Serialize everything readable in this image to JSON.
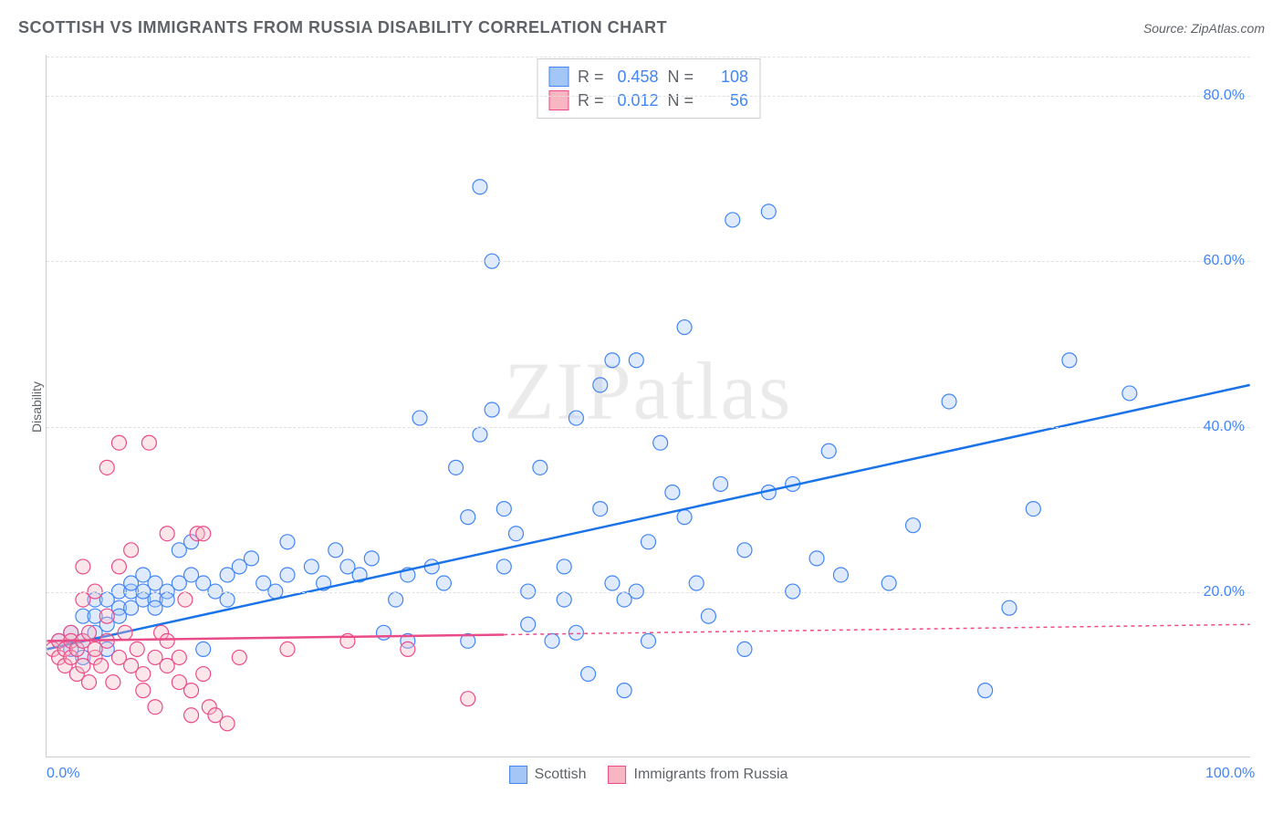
{
  "title": "SCOTTISH VS IMMIGRANTS FROM RUSSIA DISABILITY CORRELATION CHART",
  "source": "Source: ZipAtlas.com",
  "y_axis_label": "Disability",
  "watermark": "ZIPatlas",
  "chart": {
    "type": "scatter",
    "xlim": [
      0,
      100
    ],
    "ylim": [
      0,
      85
    ],
    "x_ticks": [
      {
        "v": 0,
        "label": "0.0%"
      },
      {
        "v": 100,
        "label": "100.0%"
      }
    ],
    "y_ticks": [
      {
        "v": 20,
        "label": "20.0%"
      },
      {
        "v": 40,
        "label": "40.0%"
      },
      {
        "v": 60,
        "label": "60.0%"
      },
      {
        "v": 80,
        "label": "80.0%"
      }
    ],
    "grid_color": "#e0e0e0",
    "background_color": "#ffffff",
    "axis_label_color": "#4285f4",
    "marker_radius": 8,
    "marker_stroke_width": 1.2,
    "marker_fill_opacity": 0.35,
    "trend_line_width": 2.5,
    "series": [
      {
        "id": "scottish",
        "label": "Scottish",
        "color_fill": "#a3c6f7",
        "color_stroke": "#4285f4",
        "trend_color": "#1a73e8",
        "trend_dash": "none",
        "R": "0.458",
        "N": "108",
        "trend": {
          "x1": 0,
          "y1": 13,
          "x2": 100,
          "y2": 45
        },
        "points": [
          [
            1,
            14
          ],
          [
            2,
            13
          ],
          [
            2,
            15
          ],
          [
            3,
            14
          ],
          [
            3,
            17
          ],
          [
            3,
            12
          ],
          [
            4,
            15
          ],
          [
            4,
            19
          ],
          [
            4,
            17
          ],
          [
            5,
            16
          ],
          [
            5,
            19
          ],
          [
            5,
            13
          ],
          [
            6,
            18
          ],
          [
            6,
            20
          ],
          [
            6,
            17
          ],
          [
            7,
            18
          ],
          [
            7,
            20
          ],
          [
            7,
            21
          ],
          [
            8,
            19
          ],
          [
            8,
            22
          ],
          [
            8,
            20
          ],
          [
            9,
            19
          ],
          [
            9,
            21
          ],
          [
            9,
            18
          ],
          [
            10,
            20
          ],
          [
            10,
            19
          ],
          [
            11,
            21
          ],
          [
            11,
            25
          ],
          [
            12,
            26
          ],
          [
            12,
            22
          ],
          [
            13,
            21
          ],
          [
            13,
            13
          ],
          [
            14,
            20
          ],
          [
            15,
            22
          ],
          [
            15,
            19
          ],
          [
            16,
            23
          ],
          [
            17,
            24
          ],
          [
            18,
            21
          ],
          [
            19,
            20
          ],
          [
            20,
            26
          ],
          [
            20,
            22
          ],
          [
            22,
            23
          ],
          [
            23,
            21
          ],
          [
            24,
            25
          ],
          [
            25,
            23
          ],
          [
            26,
            22
          ],
          [
            27,
            24
          ],
          [
            28,
            15
          ],
          [
            29,
            19
          ],
          [
            30,
            14
          ],
          [
            30,
            22
          ],
          [
            31,
            41
          ],
          [
            32,
            23
          ],
          [
            33,
            21
          ],
          [
            34,
            35
          ],
          [
            35,
            14
          ],
          [
            35,
            29
          ],
          [
            36,
            39
          ],
          [
            36,
            69
          ],
          [
            37,
            60
          ],
          [
            37,
            42
          ],
          [
            38,
            23
          ],
          [
            38,
            30
          ],
          [
            39,
            27
          ],
          [
            40,
            20
          ],
          [
            40,
            16
          ],
          [
            41,
            35
          ],
          [
            42,
            14
          ],
          [
            43,
            23
          ],
          [
            43,
            19
          ],
          [
            44,
            15
          ],
          [
            44,
            41
          ],
          [
            45,
            10
          ],
          [
            46,
            45
          ],
          [
            46,
            30
          ],
          [
            47,
            21
          ],
          [
            47,
            48
          ],
          [
            48,
            19
          ],
          [
            48,
            8
          ],
          [
            49,
            20
          ],
          [
            49,
            48
          ],
          [
            50,
            26
          ],
          [
            50,
            14
          ],
          [
            51,
            38
          ],
          [
            52,
            32
          ],
          [
            53,
            29
          ],
          [
            53,
            52
          ],
          [
            54,
            21
          ],
          [
            55,
            17
          ],
          [
            56,
            33
          ],
          [
            57,
            65
          ],
          [
            58,
            13
          ],
          [
            58,
            25
          ],
          [
            60,
            66
          ],
          [
            60,
            32
          ],
          [
            62,
            33
          ],
          [
            62,
            20
          ],
          [
            64,
            24
          ],
          [
            65,
            37
          ],
          [
            66,
            22
          ],
          [
            70,
            21
          ],
          [
            72,
            28
          ],
          [
            75,
            43
          ],
          [
            78,
            8
          ],
          [
            80,
            18
          ],
          [
            82,
            30
          ],
          [
            85,
            48
          ],
          [
            90,
            44
          ]
        ]
      },
      {
        "id": "russia",
        "label": "Immigrants from Russia",
        "color_fill": "#f7b6c2",
        "color_stroke": "#ea4c89",
        "trend_color": "#ea4c89",
        "trend_dash": "4,4",
        "trend_solid_until_x": 38,
        "R": "0.012",
        "N": "56",
        "trend": {
          "x1": 0,
          "y1": 14,
          "x2": 100,
          "y2": 16
        },
        "points": [
          [
            0.5,
            13
          ],
          [
            1,
            14
          ],
          [
            1,
            12
          ],
          [
            1.5,
            13
          ],
          [
            1.5,
            11
          ],
          [
            2,
            15
          ],
          [
            2,
            12
          ],
          [
            2,
            14
          ],
          [
            2.5,
            10
          ],
          [
            2.5,
            13
          ],
          [
            3,
            14
          ],
          [
            3,
            11
          ],
          [
            3,
            19
          ],
          [
            3,
            23
          ],
          [
            3.5,
            15
          ],
          [
            3.5,
            9
          ],
          [
            4,
            12
          ],
          [
            4,
            13
          ],
          [
            4,
            20
          ],
          [
            4.5,
            11
          ],
          [
            5,
            14
          ],
          [
            5,
            35
          ],
          [
            5,
            17
          ],
          [
            5.5,
            9
          ],
          [
            6,
            23
          ],
          [
            6,
            12
          ],
          [
            6,
            38
          ],
          [
            6.5,
            15
          ],
          [
            7,
            25
          ],
          [
            7,
            11
          ],
          [
            7.5,
            13
          ],
          [
            8,
            10
          ],
          [
            8,
            8
          ],
          [
            8.5,
            38
          ],
          [
            9,
            12
          ],
          [
            9,
            6
          ],
          [
            9.5,
            15
          ],
          [
            10,
            14
          ],
          [
            10,
            11
          ],
          [
            10,
            27
          ],
          [
            11,
            12
          ],
          [
            11,
            9
          ],
          [
            11.5,
            19
          ],
          [
            12,
            8
          ],
          [
            12,
            5
          ],
          [
            12.5,
            27
          ],
          [
            13,
            27
          ],
          [
            13,
            10
          ],
          [
            13.5,
            6
          ],
          [
            14,
            5
          ],
          [
            15,
            4
          ],
          [
            16,
            12
          ],
          [
            20,
            13
          ],
          [
            25,
            14
          ],
          [
            30,
            13
          ],
          [
            35,
            7
          ]
        ]
      }
    ]
  },
  "legend_stats_title": {
    "r_label": "R =",
    "n_label": "N ="
  },
  "legend_bottom": [
    {
      "ref": "scottish"
    },
    {
      "ref": "russia"
    }
  ]
}
